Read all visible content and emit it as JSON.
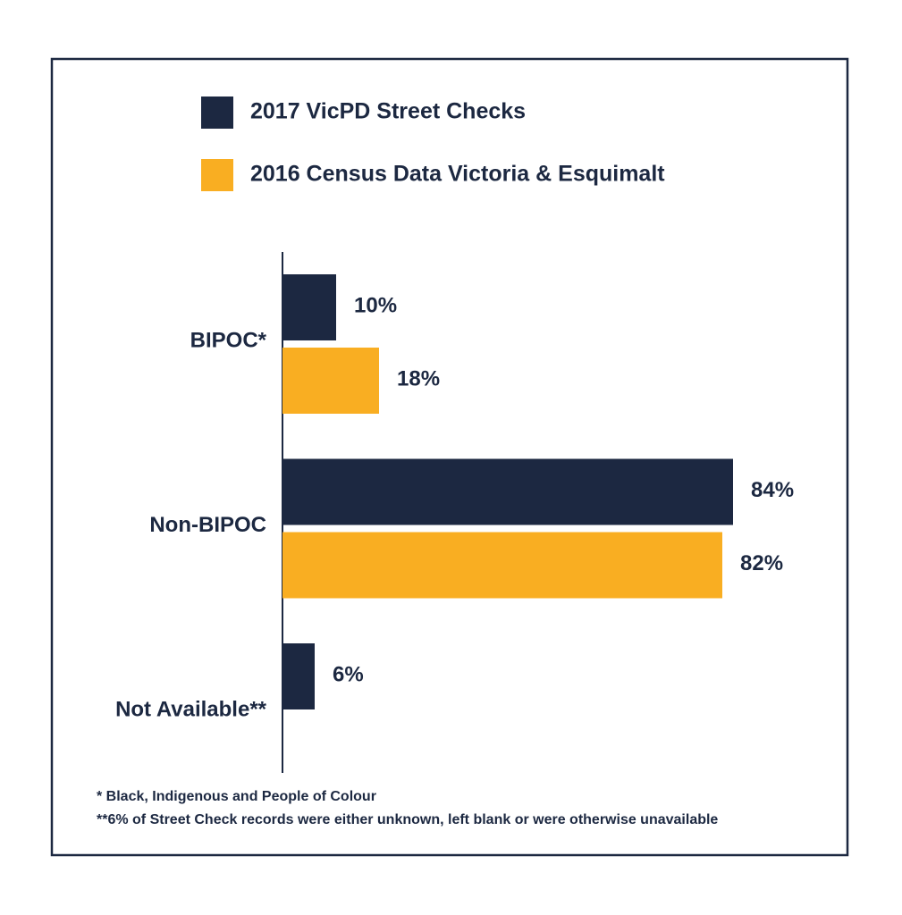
{
  "chart_data": {
    "type": "hbar",
    "categories": [
      "BIPOC*",
      "Non-BIPOC",
      "Not Available**"
    ],
    "series": [
      {
        "name": "2017 VicPD Street Checks",
        "color": "#1c2841",
        "values": [
          10,
          84,
          6
        ],
        "value_labels": [
          "10%",
          "84%",
          "6%"
        ]
      },
      {
        "name": "2016 Census Data Victoria & Esquimalt",
        "color": "#f9ae22",
        "values": [
          18,
          82,
          null
        ],
        "value_labels": [
          "18%",
          "82%",
          null
        ]
      }
    ],
    "xlim": [
      0,
      84
    ],
    "footnotes": [
      "* Black, Indigenous and People of Colour",
      "**6% of Street Check records were either unknown, left blank or were otherwise unavailable"
    ]
  }
}
